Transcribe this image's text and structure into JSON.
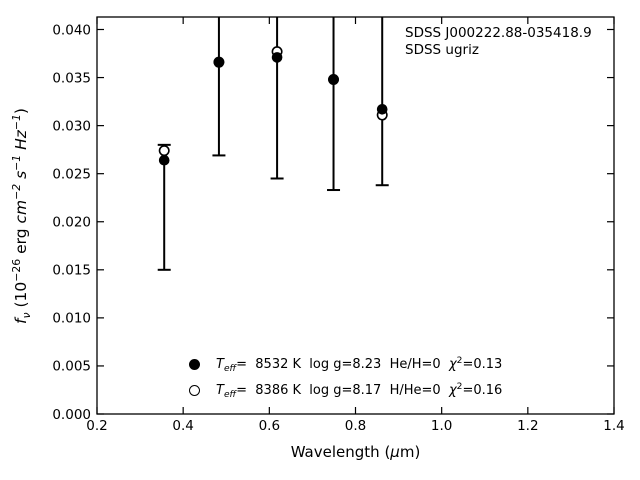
{
  "annotation": {
    "line1": "SDSS J000222.88-035418.9",
    "line2": "SDSS ugriz"
  },
  "labels": {
    "xlabel_segments": [
      {
        "t": "Wavelength ("
      },
      {
        "t": "μ",
        "i": true
      },
      {
        "t": "m)"
      }
    ],
    "ylabel_segments": [
      {
        "t": "f",
        "i": true
      },
      {
        "t": "ν",
        "i": true,
        "sub": true
      },
      {
        "t": " (10"
      },
      {
        "t": "−26",
        "sup": true
      },
      {
        "t": " erg "
      },
      {
        "t": "cm",
        "i": true
      },
      {
        "t": "−2",
        "i": true,
        "sup": true
      },
      {
        "t": " "
      },
      {
        "t": "s",
        "i": true
      },
      {
        "t": "−1",
        "i": true,
        "sup": true
      },
      {
        "t": " "
      },
      {
        "t": "Hz",
        "i": true
      },
      {
        "t": "−1",
        "i": true,
        "sup": true
      },
      {
        "t": ")"
      }
    ]
  },
  "legend": {
    "entries": [
      {
        "marker": "filled-circle",
        "segments": [
          {
            "t": "T",
            "i": true
          },
          {
            "t": "eff",
            "i": true,
            "sub": true
          },
          {
            "t": "=  8532 K  log g=8.23  He/H=0  "
          },
          {
            "t": "χ",
            "i": true
          },
          {
            "t": "2",
            "sup": true
          },
          {
            "t": "=0.13"
          }
        ]
      },
      {
        "marker": "open-circle",
        "segments": [
          {
            "t": "T",
            "i": true
          },
          {
            "t": "eff",
            "i": true,
            "sub": true
          },
          {
            "t": "=  8386 K  log g=8.17  H/He=0  "
          },
          {
            "t": "χ",
            "i": true
          },
          {
            "t": "2",
            "sup": true
          },
          {
            "t": "=0.16"
          }
        ]
      }
    ]
  },
  "chart_data": {
    "type": "scatter",
    "title": "",
    "xlabel": "Wavelength (μm)",
    "ylabel": "f_ν (10^−26 erg cm^−2 s^−1 Hz^−1)",
    "annotation": [
      "SDSS J000222.88-035418.9",
      "SDSS ugriz"
    ],
    "xlim": [
      0.2,
      1.4
    ],
    "ylim": [
      0,
      0.0413
    ],
    "xtick_labels": [
      "0.2",
      "0.4",
      "0.6",
      "0.8",
      "1.0",
      "1.2",
      "1.4"
    ],
    "ytick_labels": [
      "0.000",
      "0.005",
      "0.010",
      "0.015",
      "0.020",
      "0.025",
      "0.030",
      "0.035",
      "0.040"
    ],
    "grid": false,
    "tick_direction": "in",
    "legend_position": "inside lower center",
    "bands": [
      "u",
      "g",
      "r",
      "i",
      "z"
    ],
    "x": [
      0.356,
      0.483,
      0.618,
      0.749,
      0.862
    ],
    "series": [
      {
        "name": "Teff= 8532 K, log g=8.23, He/H=0, chi2=0.13",
        "marker": "filled-circle",
        "values": [
          0.0264,
          0.0366,
          0.0371,
          0.0348,
          0.0317
        ]
      },
      {
        "name": "Teff= 8386 K, log g=8.17, H/He=0, chi2=0.16",
        "marker": "open-circle",
        "values": [
          0.0274,
          0.0366,
          0.0377,
          0.0348,
          0.0311
        ]
      }
    ],
    "error_bars": {
      "attached_to": "filled-circle series",
      "low": [
        0.015,
        0.0269,
        0.0245,
        0.0233,
        0.0238
      ],
      "high": [
        0.028,
        0.046,
        0.046,
        0.046,
        0.046
      ],
      "high_clipped_at_top": [
        false,
        true,
        true,
        true,
        true
      ]
    },
    "colors": {
      "foreground": "#000000",
      "background": "#ffffff"
    }
  }
}
